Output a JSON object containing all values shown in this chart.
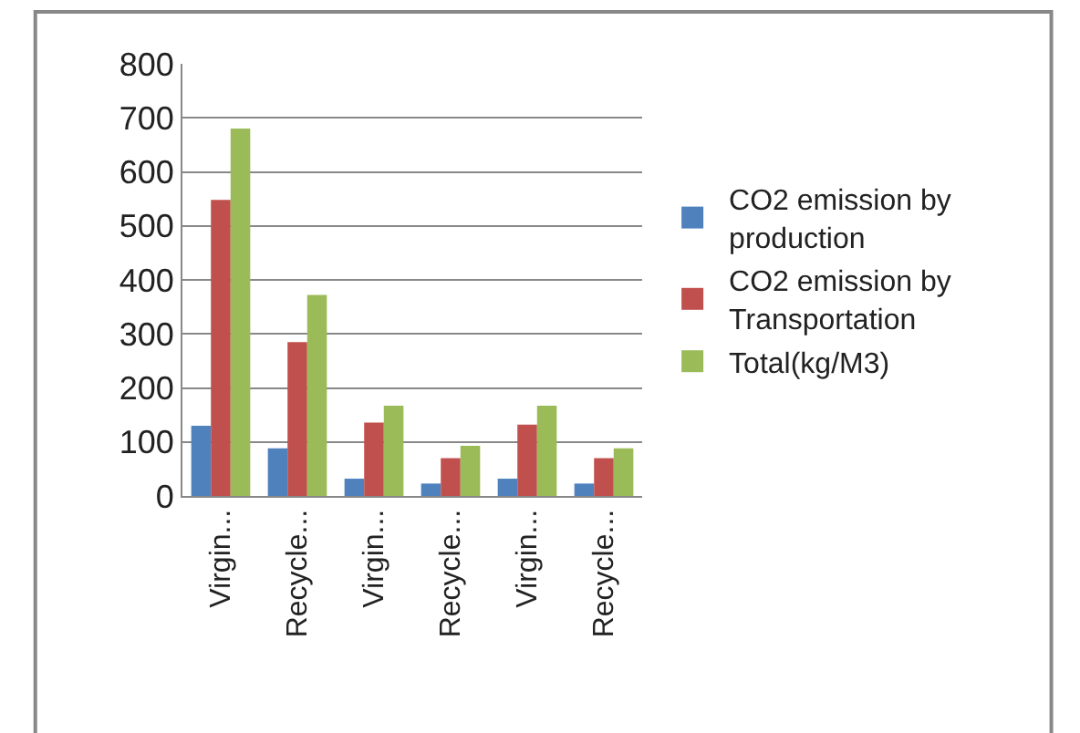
{
  "chart_data": {
    "type": "bar",
    "categories": [
      "Virgin...",
      "Recycle...",
      "Virgin...",
      "Recycle...",
      "Virgin...",
      "Recycle..."
    ],
    "series": [
      {
        "name": "CO2 emission by production",
        "color": "#4f81bd",
        "values": [
          130,
          88,
          32,
          23,
          32,
          23
        ]
      },
      {
        "name": "CO2 emission by Transportation",
        "color": "#c0504d",
        "values": [
          548,
          285,
          136,
          70,
          132,
          70
        ]
      },
      {
        "name": "Total(kg/M3)",
        "color": "#9bbb59",
        "values": [
          680,
          372,
          167,
          93,
          167,
          88
        ]
      }
    ],
    "ylim": [
      0,
      800
    ],
    "yticks": [
      0,
      100,
      200,
      300,
      400,
      500,
      600,
      700,
      800
    ],
    "grid": "y",
    "legend": "right"
  }
}
